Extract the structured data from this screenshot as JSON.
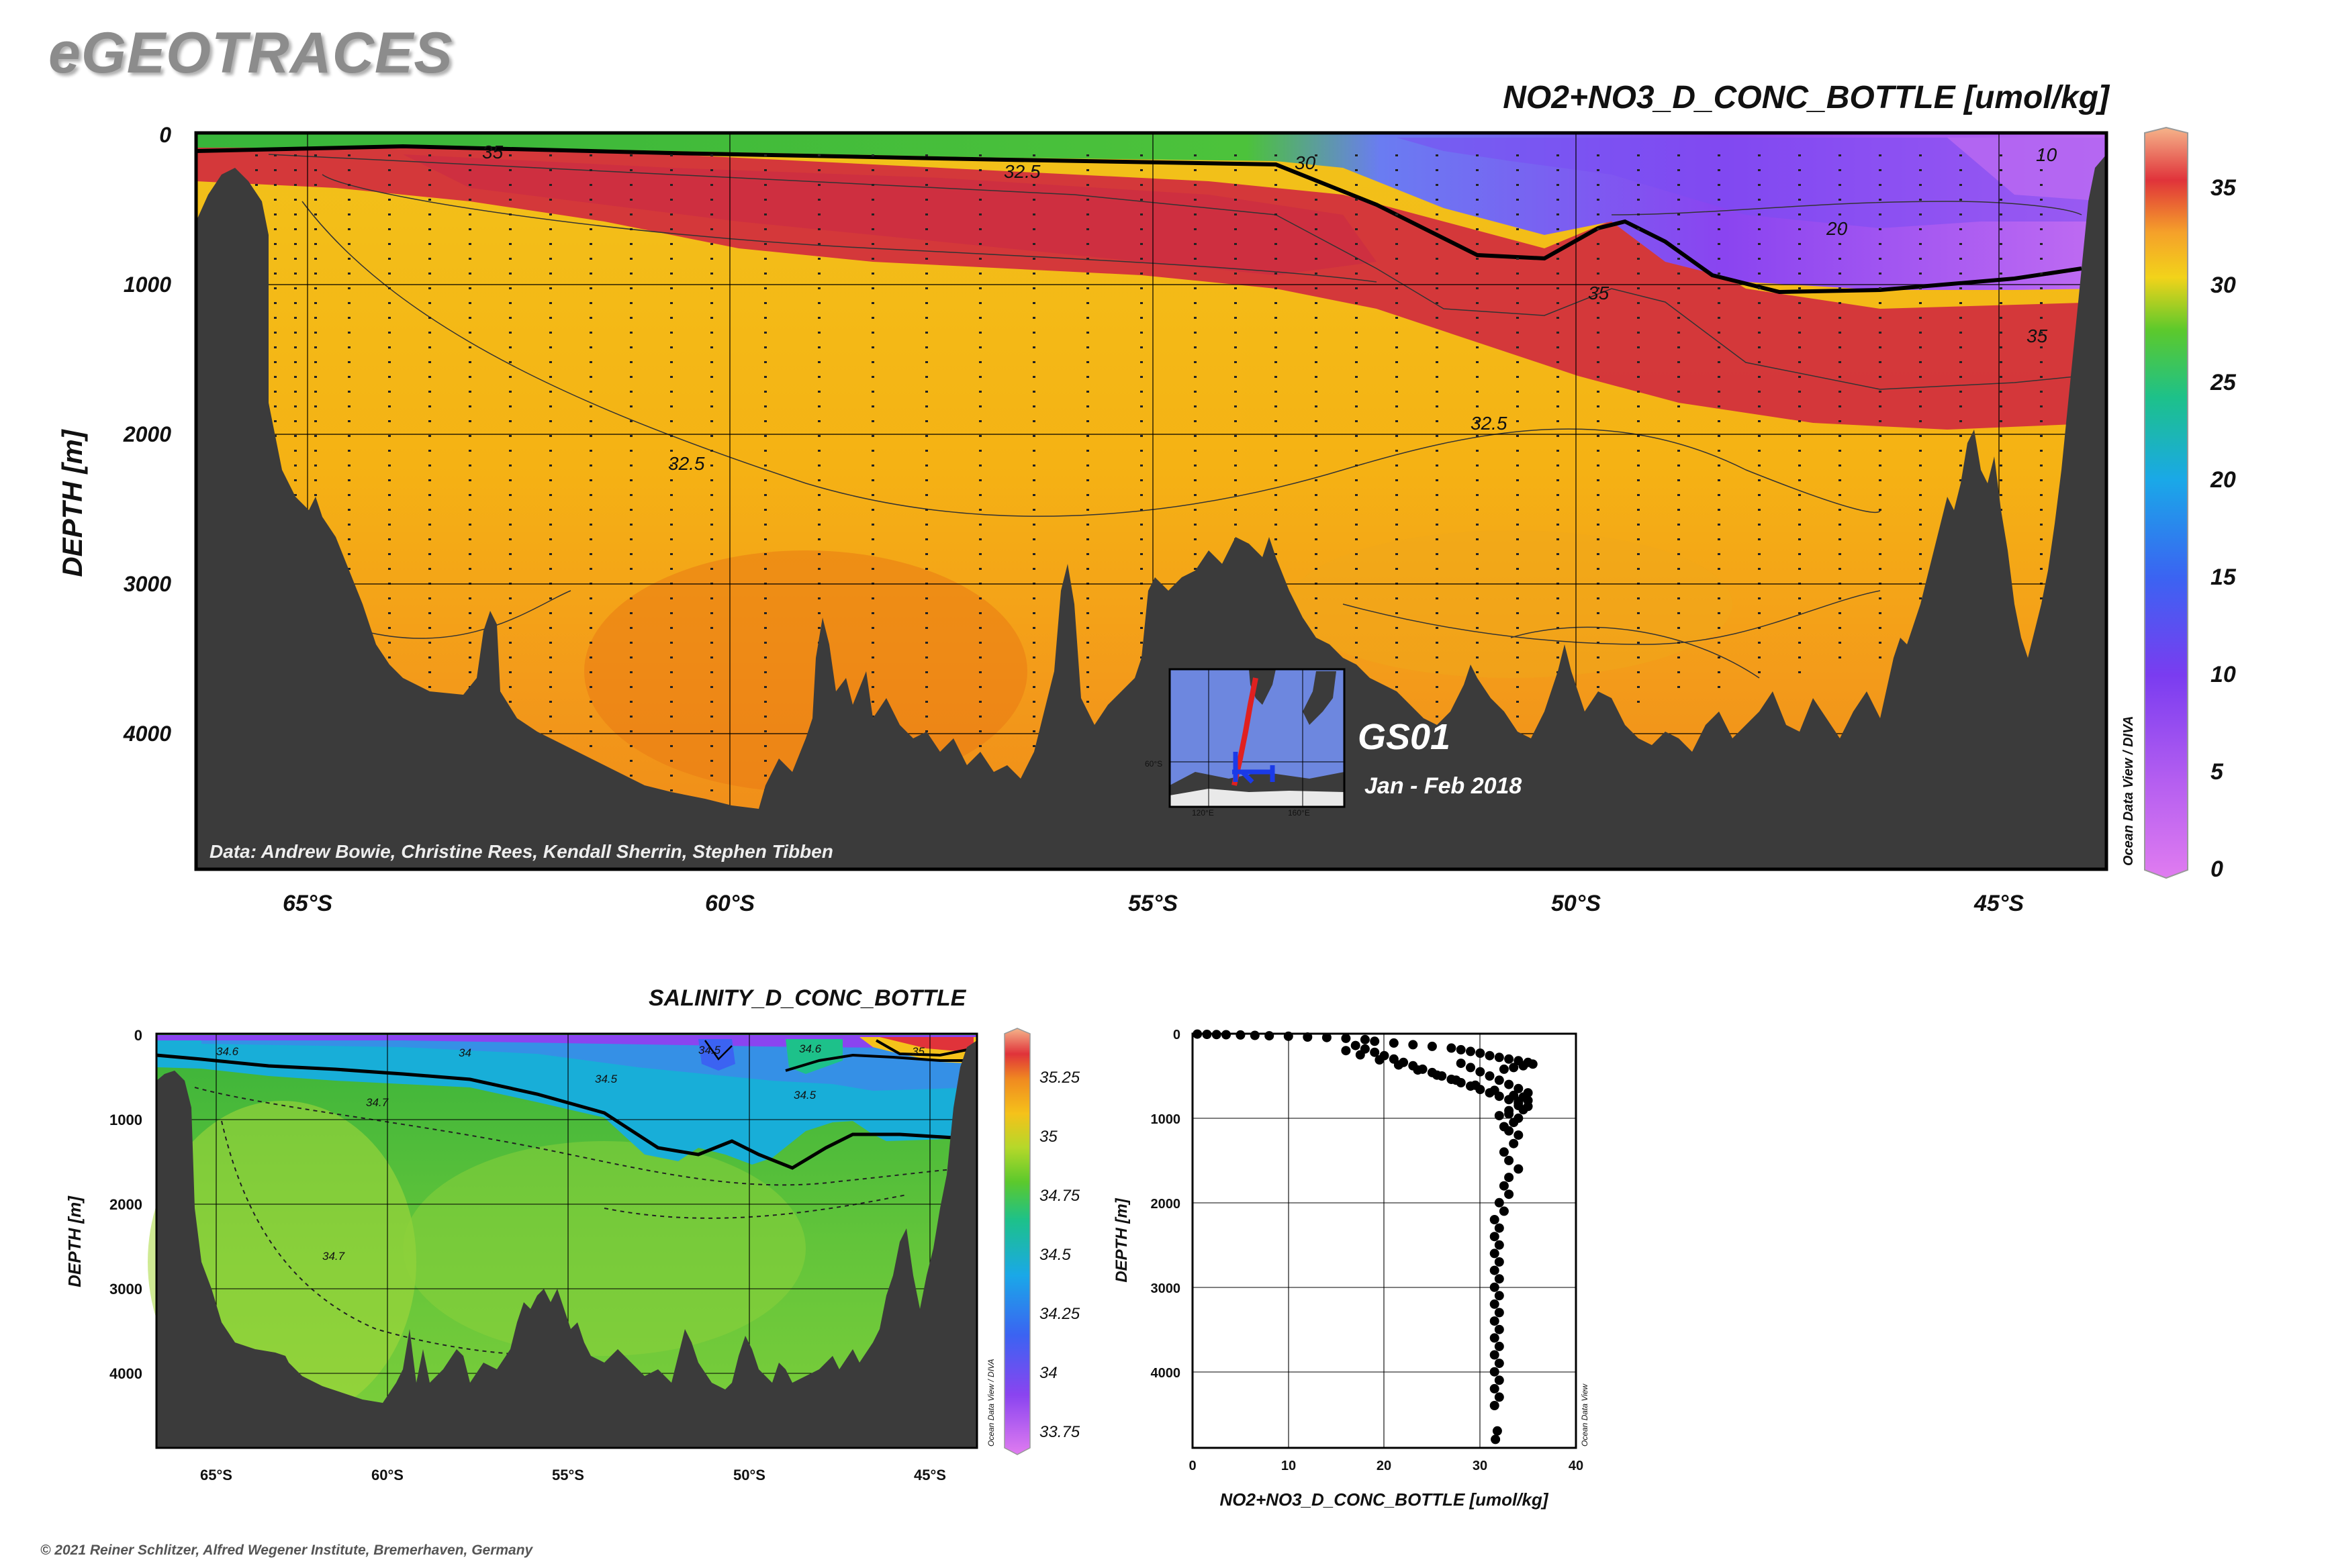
{
  "brand": "eGEOTRACES",
  "copyright": "© 2021 Reiner Schlitzer, Alfred Wegener Institute, Bremerhaven, Germany",
  "main_section": {
    "title": "NO2+NO3_D_CONC_BOTTLE [umol/kg]",
    "ylabel": "DEPTH [m]",
    "credit": "Data: Andrew Bowie, Christine Rees, Kendall Sherrin, Stephen Tibben",
    "watermark": "Ocean Data View / DIVA",
    "cruise": "GS01",
    "dates": "Jan - Feb 2018",
    "inset_labels": {
      "lat": "60°S",
      "lon1": "120°E",
      "lon2": "160°E"
    }
  },
  "salinity_section": {
    "title": "SALINITY_D_CONC_BOTTLE",
    "ylabel": "DEPTH [m]",
    "watermark": "Ocean Data View / DIVA"
  },
  "scatter": {
    "ylabel": "DEPTH [m]",
    "xlabel": "NO2+NO3_D_CONC_BOTTLE [umol/kg]",
    "watermark": "Ocean Data View"
  },
  "chart_data": [
    {
      "type": "heatmap",
      "title": "NO2+NO3_D_CONC_BOTTLE [umol/kg]",
      "ylabel": "DEPTH [m]",
      "xlabel": "",
      "x_ticks": [
        "65°S",
        "60°S",
        "55°S",
        "50°S",
        "45°S"
      ],
      "x_tick_values": [
        65,
        60,
        55,
        50,
        45
      ],
      "xlim": [
        66.3,
        43.7
      ],
      "y_ticks": [
        0,
        1000,
        2000,
        3000,
        4000
      ],
      "ylim": [
        0,
        4900
      ],
      "colorbar": {
        "min": 0,
        "max": 37.5,
        "ticks": [
          0,
          5,
          10,
          15,
          20,
          25,
          30,
          35
        ]
      },
      "contour_labels": [
        "35",
        "32.5",
        "30",
        "20",
        "10",
        "35",
        "35",
        "32.5",
        "32.5"
      ],
      "grid": true
    },
    {
      "type": "heatmap",
      "title": "SALINITY_D_CONC_BOTTLE",
      "ylabel": "DEPTH [m]",
      "x_ticks": [
        "65°S",
        "60°S",
        "55°S",
        "50°S",
        "45°S"
      ],
      "x_tick_values": [
        65,
        60,
        55,
        50,
        45
      ],
      "xlim": [
        66.3,
        43.7
      ],
      "y_ticks": [
        0,
        1000,
        2000,
        3000,
        4000
      ],
      "ylim": [
        0,
        4900
      ],
      "colorbar": {
        "min": 33.625,
        "max": 35.375,
        "ticks": [
          "33.75",
          "34",
          "34.25",
          "34.5",
          "34.75",
          "35",
          "35.25"
        ]
      },
      "contour_labels": [
        "34.6",
        "34",
        "34.5",
        "34.6",
        "35",
        "34.5",
        "34.7",
        "34.5",
        "34.7"
      ],
      "grid": true
    },
    {
      "type": "scatter",
      "xlabel": "NO2+NO3_D_CONC_BOTTLE [umol/kg]",
      "ylabel": "DEPTH [m]",
      "xlim": [
        0,
        40
      ],
      "ylim": [
        0,
        4900
      ],
      "x_ticks": [
        0,
        10,
        20,
        30,
        40
      ],
      "y_ticks": [
        0,
        1000,
        2000,
        3000,
        4000
      ],
      "grid": true,
      "points": [
        [
          0.5,
          5
        ],
        [
          1.5,
          8
        ],
        [
          2.5,
          10
        ],
        [
          3.5,
          12
        ],
        [
          5,
          15
        ],
        [
          6.5,
          20
        ],
        [
          8,
          25
        ],
        [
          10,
          30
        ],
        [
          12,
          40
        ],
        [
          14,
          45
        ],
        [
          16,
          55
        ],
        [
          18,
          70
        ],
        [
          19,
          90
        ],
        [
          21,
          110
        ],
        [
          23,
          130
        ],
        [
          25,
          150
        ],
        [
          27,
          170
        ],
        [
          28,
          190
        ],
        [
          29,
          210
        ],
        [
          30,
          230
        ],
        [
          31,
          260
        ],
        [
          32,
          280
        ],
        [
          33,
          300
        ],
        [
          34,
          320
        ],
        [
          35,
          340
        ],
        [
          35.5,
          360
        ],
        [
          34.5,
          380
        ],
        [
          33.5,
          400
        ],
        [
          32.5,
          420
        ],
        [
          17,
          140
        ],
        [
          18,
          180
        ],
        [
          19,
          220
        ],
        [
          20,
          260
        ],
        [
          21,
          300
        ],
        [
          22,
          340
        ],
        [
          23,
          380
        ],
        [
          24,
          420
        ],
        [
          25,
          460
        ],
        [
          26,
          500
        ],
        [
          27,
          540
        ],
        [
          28,
          580
        ],
        [
          29,
          620
        ],
        [
          30,
          660
        ],
        [
          31,
          700
        ],
        [
          32,
          740
        ],
        [
          33,
          780
        ],
        [
          34,
          820
        ],
        [
          35,
          860
        ],
        [
          34.5,
          900
        ],
        [
          16,
          200
        ],
        [
          17.5,
          250
        ],
        [
          19.5,
          310
        ],
        [
          21.5,
          370
        ],
        [
          23.5,
          430
        ],
        [
          25.5,
          490
        ],
        [
          27.5,
          550
        ],
        [
          29.5,
          610
        ],
        [
          31.5,
          670
        ],
        [
          33.5,
          730
        ],
        [
          35,
          790
        ],
        [
          34,
          850
        ],
        [
          33,
          910
        ],
        [
          32,
          970
        ],
        [
          28,
          350
        ],
        [
          29,
          400
        ],
        [
          30,
          450
        ],
        [
          31,
          500
        ],
        [
          32,
          550
        ],
        [
          33,
          600
        ],
        [
          34,
          650
        ],
        [
          35,
          700
        ],
        [
          34.5,
          750
        ],
        [
          34,
          800
        ],
        [
          33,
          950
        ],
        [
          34,
          1000
        ],
        [
          33.5,
          1050
        ],
        [
          32.5,
          1100
        ],
        [
          33,
          1150
        ],
        [
          34,
          1200
        ],
        [
          33.5,
          1300
        ],
        [
          32.5,
          1400
        ],
        [
          33,
          1500
        ],
        [
          34,
          1600
        ],
        [
          33,
          1700
        ],
        [
          32.5,
          1800
        ],
        [
          33,
          1900
        ],
        [
          32,
          2000
        ],
        [
          32.5,
          2100
        ],
        [
          31.5,
          2200
        ],
        [
          32,
          2300
        ],
        [
          31.5,
          2400
        ],
        [
          32,
          2500
        ],
        [
          31.5,
          2600
        ],
        [
          32,
          2700
        ],
        [
          31.5,
          2800
        ],
        [
          32,
          2900
        ],
        [
          31.5,
          3000
        ],
        [
          32,
          3100
        ],
        [
          31.5,
          3200
        ],
        [
          32,
          3300
        ],
        [
          31.5,
          3400
        ],
        [
          32,
          3500
        ],
        [
          31.5,
          3600
        ],
        [
          32,
          3700
        ],
        [
          31.5,
          3800
        ],
        [
          32,
          3900
        ],
        [
          31.5,
          4000
        ],
        [
          32,
          4100
        ],
        [
          31.5,
          4200
        ],
        [
          32,
          4300
        ],
        [
          31.5,
          4400
        ],
        [
          31.8,
          4700
        ],
        [
          31.6,
          4800
        ]
      ]
    }
  ],
  "colors": {
    "seafloor": "#3b3b3b",
    "nitrate_max": "#d2303c",
    "background": "#ffffff"
  }
}
